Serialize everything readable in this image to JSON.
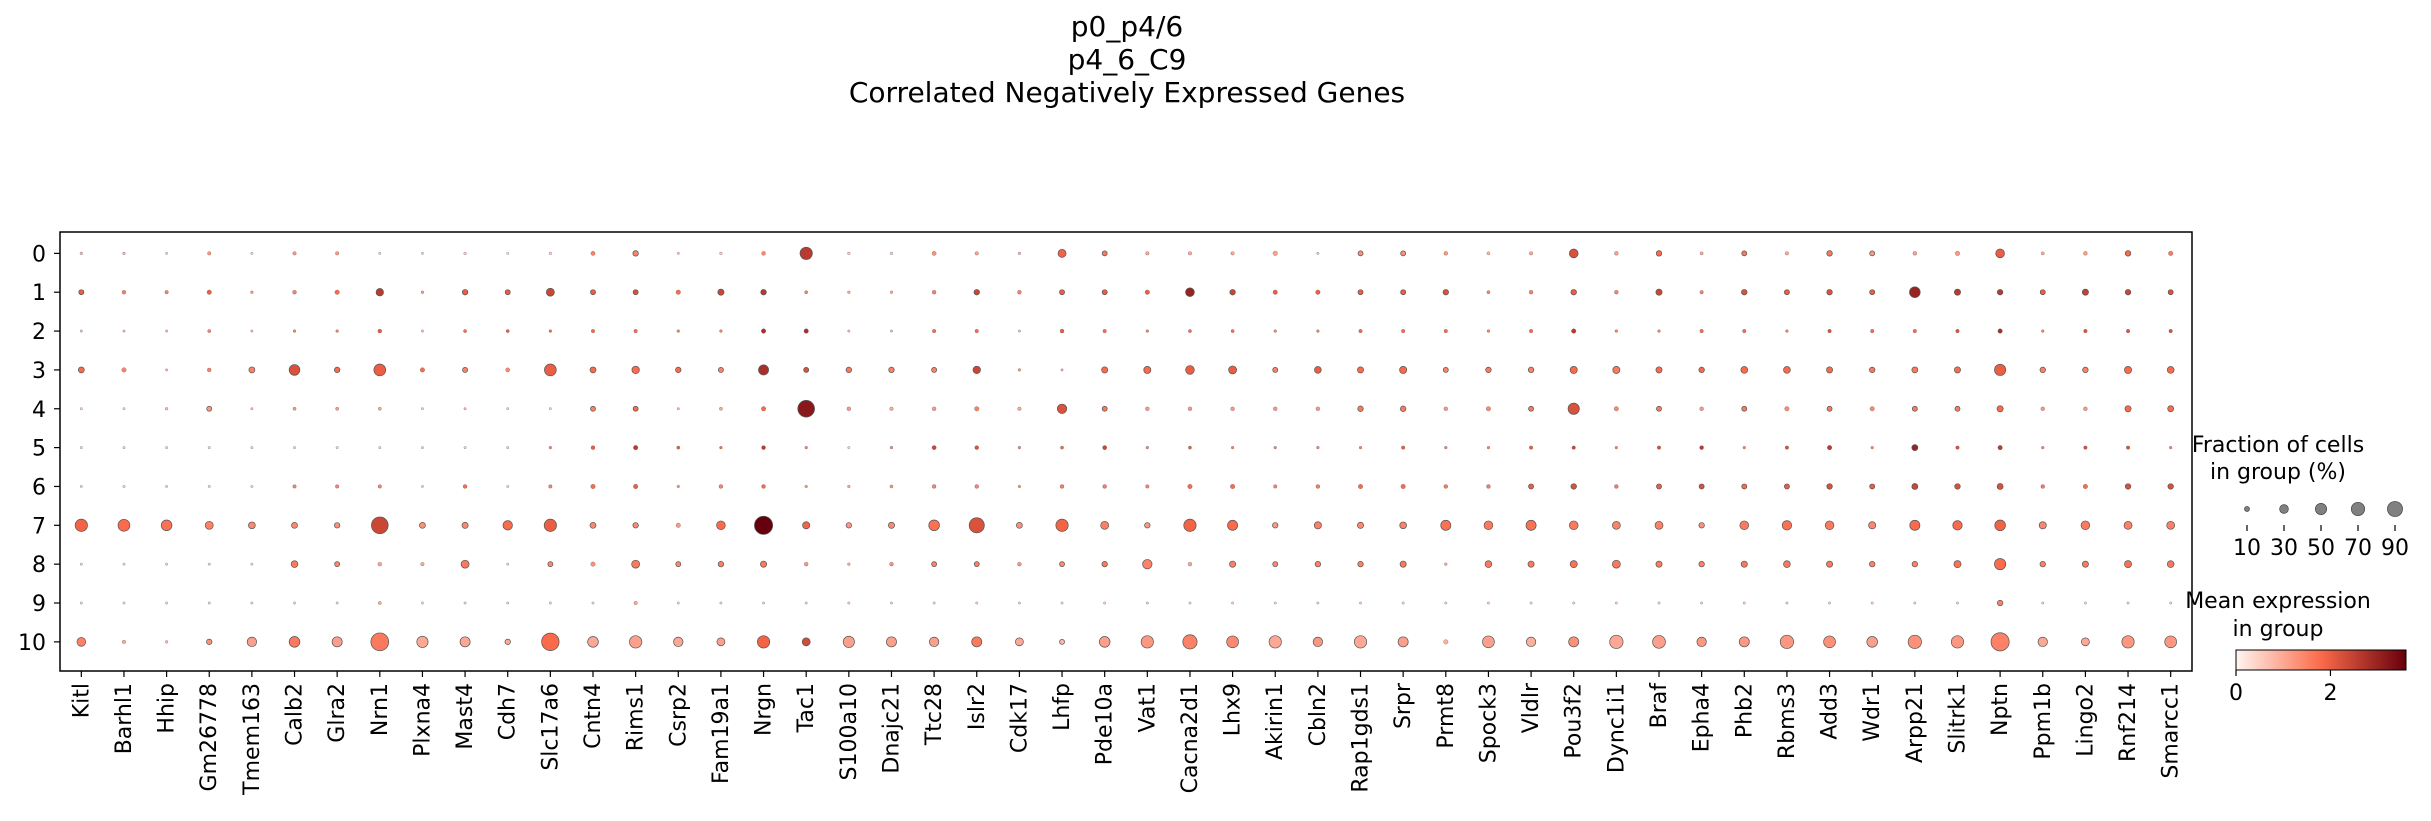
{
  "chart_data": {
    "type": "dotplot",
    "title": [
      "p0_p4/6",
      "p4_6_C9",
      "Correlated Negatively Expressed Genes"
    ],
    "groups": [
      "0",
      "1",
      "2",
      "3",
      "4",
      "5",
      "6",
      "7",
      "8",
      "9",
      "10"
    ],
    "genes": [
      "Kitl",
      "Barhl1",
      "Hhip",
      "Gm26778",
      "Tmem163",
      "Calb2",
      "Glra2",
      "Nrn1",
      "Plxna4",
      "Mast4",
      "Cdh7",
      "Slc17a6",
      "Cntn4",
      "Rims1",
      "Csrp2",
      "Fam19a1",
      "Nrgn",
      "Tac1",
      "S100a10",
      "Dnajc21",
      "Ttc28",
      "Islr2",
      "Cdk17",
      "Lhfp",
      "Pde10a",
      "Vat1",
      "Cacna2d1",
      "Lhx9",
      "Akirin1",
      "Cbln2",
      "Rap1gds1",
      "Srpr",
      "Prmt8",
      "Spock3",
      "Vldlr",
      "Pou3f2",
      "Dync1i1",
      "Braf",
      "Epha4",
      "Phb2",
      "Rbms3",
      "Add3",
      "Wdr1",
      "Arpp21",
      "Slitrk1",
      "Nptn",
      "Ppm1b",
      "Lingo2",
      "Rnf214",
      "Smarcc1"
    ],
    "fraction_pct": [
      [
        3,
        3,
        1,
        5,
        1,
        5,
        5,
        2,
        1,
        3,
        1,
        3,
        7,
        12,
        2,
        3,
        6,
        60,
        3,
        3,
        7,
        5,
        3,
        25,
        10,
        5,
        5,
        5,
        8,
        2,
        10,
        10,
        6,
        4,
        5,
        30,
        6,
        12,
        4,
        10,
        5,
        12,
        10,
        6,
        8,
        30,
        4,
        6,
        12,
        8
      ],
      [
        10,
        6,
        5,
        8,
        3,
        6,
        8,
        22,
        3,
        12,
        10,
        25,
        10,
        10,
        8,
        15,
        12,
        4,
        3,
        3,
        6,
        12,
        6,
        10,
        10,
        8,
        30,
        12,
        8,
        8,
        10,
        10,
        12,
        4,
        6,
        12,
        6,
        15,
        5,
        12,
        10,
        12,
        10,
        45,
        15,
        12,
        10,
        15,
        12,
        10
      ],
      [
        1,
        1,
        1,
        4,
        1,
        3,
        3,
        6,
        1,
        4,
        4,
        3,
        5,
        5,
        3,
        3,
        8,
        8,
        1,
        1,
        5,
        5,
        1,
        6,
        5,
        3,
        4,
        4,
        3,
        3,
        5,
        5,
        5,
        3,
        5,
        8,
        3,
        3,
        5,
        5,
        3,
        5,
        5,
        5,
        5,
        8,
        3,
        5,
        5,
        5
      ],
      [
        14,
        8,
        2,
        6,
        14,
        45,
        12,
        55,
        8,
        10,
        7,
        55,
        14,
        22,
        12,
        10,
        40,
        10,
        12,
        12,
        10,
        22,
        3,
        1,
        15,
        20,
        30,
        25,
        10,
        18,
        15,
        20,
        10,
        12,
        12,
        20,
        20,
        15,
        12,
        18,
        18,
        15,
        12,
        14,
        15,
        50,
        12,
        12,
        20,
        18
      ],
      [
        1,
        1,
        3,
        10,
        2,
        4,
        4,
        4,
        1,
        2,
        1,
        1,
        10,
        10,
        2,
        4,
        8,
        110,
        6,
        5,
        6,
        8,
        5,
        35,
        10,
        6,
        6,
        6,
        6,
        6,
        12,
        12,
        6,
        8,
        10,
        50,
        8,
        10,
        6,
        10,
        8,
        10,
        8,
        10,
        10,
        15,
        6,
        6,
        15,
        14
      ],
      [
        1,
        1,
        1,
        1,
        1,
        1,
        1,
        1,
        1,
        1,
        1,
        3,
        6,
        8,
        4,
        3,
        6,
        3,
        1,
        3,
        7,
        6,
        3,
        4,
        7,
        3,
        4,
        3,
        3,
        3,
        3,
        5,
        3,
        3,
        5,
        5,
        3,
        5,
        6,
        3,
        5,
        8,
        3,
        14,
        5,
        8,
        3,
        5,
        5,
        3
      ],
      [
        1,
        1,
        1,
        1,
        1,
        5,
        5,
        5,
        1,
        6,
        1,
        5,
        8,
        8,
        3,
        6,
        6,
        3,
        3,
        4,
        6,
        6,
        3,
        6,
        6,
        5,
        8,
        8,
        5,
        6,
        8,
        8,
        6,
        6,
        10,
        12,
        6,
        10,
        10,
        10,
        10,
        12,
        10,
        14,
        12,
        14,
        6,
        8,
        12,
        12
      ],
      [
        60,
        55,
        45,
        25,
        18,
        14,
        12,
        110,
        14,
        15,
        35,
        60,
        14,
        12,
        8,
        30,
        130,
        20,
        12,
        15,
        45,
        90,
        14,
        60,
        25,
        12,
        60,
        40,
        12,
        20,
        15,
        18,
        40,
        30,
        40,
        30,
        25,
        25,
        12,
        30,
        35,
        30,
        20,
        40,
        35,
        45,
        20,
        30,
        25,
        25
      ],
      [
        1,
        1,
        1,
        1,
        1,
        18,
        10,
        6,
        5,
        25,
        1,
        10,
        8,
        25,
        10,
        12,
        15,
        6,
        3,
        6,
        10,
        10,
        6,
        10,
        12,
        35,
        6,
        15,
        10,
        12,
        12,
        15,
        3,
        18,
        15,
        20,
        25,
        15,
        12,
        15,
        18,
        15,
        12,
        12,
        20,
        50,
        12,
        15,
        20,
        18
      ],
      [
        1,
        1,
        1,
        1,
        1,
        1,
        1,
        4,
        1,
        1,
        1,
        1,
        1,
        5,
        1,
        1,
        1,
        1,
        1,
        1,
        1,
        1,
        1,
        1,
        1,
        1,
        1,
        1,
        1,
        1,
        1,
        1,
        1,
        1,
        1,
        1,
        1,
        1,
        1,
        1,
        1,
        1,
        1,
        1,
        1,
        12,
        1,
        1,
        1,
        1
      ],
      [
        30,
        5,
        3,
        12,
        35,
        45,
        40,
        125,
        50,
        40,
        12,
        120,
        45,
        60,
        35,
        25,
        60,
        25,
        50,
        40,
        35,
        40,
        25,
        10,
        45,
        60,
        80,
        55,
        60,
        35,
        60,
        40,
        8,
        55,
        35,
        40,
        70,
        65,
        35,
        40,
        70,
        55,
        45,
        70,
        60,
        130,
        35,
        25,
        60,
        55
      ]
    ],
    "mean_expr": [
      [
        0.8,
        0.8,
        0.5,
        1.2,
        0.5,
        1.2,
        1.2,
        0.5,
        0.5,
        0.6,
        0.3,
        0.5,
        1.5,
        1.5,
        0.6,
        0.6,
        1.4,
        2.6,
        0.6,
        0.5,
        1.3,
        1.1,
        0.8,
        1.9,
        1.6,
        1.0,
        1.0,
        1.0,
        1.1,
        0.6,
        1.3,
        1.3,
        1.2,
        0.8,
        1.0,
        2.2,
        1.1,
        1.8,
        1.0,
        1.6,
        1.0,
        1.6,
        1.2,
        1.1,
        1.2,
        2.0,
        1.0,
        1.1,
        1.8,
        1.6
      ],
      [
        2.0,
        1.5,
        1.5,
        2.0,
        1.2,
        1.5,
        1.8,
        2.6,
        1.2,
        2.0,
        2.0,
        2.4,
        2.0,
        2.2,
        1.8,
        2.4,
        2.6,
        1.5,
        1.0,
        1.0,
        1.5,
        2.4,
        1.5,
        2.0,
        2.0,
        2.0,
        3.0,
        2.4,
        2.0,
        2.0,
        2.0,
        2.0,
        2.2,
        1.5,
        1.5,
        2.0,
        1.5,
        2.4,
        1.5,
        2.2,
        2.0,
        2.2,
        2.0,
        3.0,
        2.6,
        2.6,
        2.0,
        2.5,
        2.4,
        2.2
      ],
      [
        0.8,
        0.8,
        0.8,
        1.5,
        0.8,
        1.5,
        1.5,
        2.0,
        0.8,
        1.8,
        2.0,
        1.8,
        1.8,
        1.8,
        1.5,
        1.5,
        2.8,
        2.8,
        0.8,
        0.8,
        1.8,
        1.8,
        0.8,
        2.0,
        1.8,
        1.5,
        1.8,
        1.8,
        1.5,
        1.5,
        1.8,
        1.8,
        1.8,
        1.5,
        1.8,
        2.6,
        1.5,
        1.5,
        1.8,
        1.8,
        1.5,
        2.2,
        1.8,
        1.8,
        2.2,
        2.8,
        1.5,
        2.2,
        2.2,
        2.2
      ],
      [
        1.8,
        1.5,
        0.8,
        1.5,
        1.5,
        2.2,
        1.8,
        2.0,
        1.8,
        1.5,
        1.4,
        2.0,
        1.8,
        1.8,
        1.8,
        1.5,
        2.8,
        2.2,
        1.6,
        1.5,
        1.5,
        2.4,
        1.2,
        1.0,
        1.8,
        1.8,
        2.0,
        2.0,
        1.5,
        2.0,
        1.8,
        1.8,
        1.5,
        1.6,
        1.5,
        1.8,
        1.6,
        1.8,
        1.8,
        1.8,
        1.8,
        1.8,
        1.6,
        1.6,
        1.8,
        2.0,
        1.5,
        1.5,
        1.8,
        1.8
      ],
      [
        0.5,
        0.5,
        0.8,
        1.2,
        0.8,
        1.2,
        1.2,
        1.0,
        0.5,
        0.8,
        0.5,
        0.5,
        1.5,
        1.8,
        0.8,
        1.0,
        1.8,
        3.2,
        1.2,
        1.0,
        1.2,
        1.5,
        1.0,
        2.2,
        1.6,
        1.2,
        1.2,
        1.2,
        1.2,
        1.2,
        1.6,
        1.6,
        1.2,
        1.4,
        1.6,
        2.2,
        1.4,
        1.6,
        1.2,
        1.6,
        1.4,
        1.6,
        1.4,
        1.6,
        1.6,
        1.8,
        1.2,
        1.2,
        1.8,
        1.8
      ],
      [
        0.5,
        0.5,
        0.5,
        0.5,
        0.5,
        0.5,
        0.5,
        0.5,
        0.5,
        0.5,
        0.5,
        1.5,
        2.0,
        2.6,
        2.0,
        1.8,
        2.6,
        1.5,
        0.5,
        1.5,
        2.4,
        2.2,
        1.5,
        1.8,
        2.4,
        1.5,
        2.0,
        1.5,
        1.5,
        1.5,
        1.5,
        2.0,
        1.5,
        1.5,
        2.0,
        2.4,
        1.5,
        2.2,
        2.6,
        1.5,
        2.2,
        2.6,
        1.5,
        3.0,
        2.2,
        2.6,
        1.5,
        2.2,
        2.2,
        1.5
      ],
      [
        0.5,
        0.5,
        0.5,
        0.5,
        0.5,
        1.5,
        1.5,
        1.5,
        0.5,
        1.8,
        0.5,
        1.5,
        1.8,
        2.0,
        1.2,
        1.5,
        1.8,
        1.2,
        1.0,
        1.2,
        1.5,
        1.5,
        1.2,
        1.6,
        1.6,
        1.5,
        1.8,
        1.8,
        1.5,
        1.6,
        1.8,
        1.8,
        1.6,
        1.6,
        2.0,
        2.2,
        1.6,
        2.0,
        2.2,
        1.8,
        2.0,
        2.2,
        2.0,
        2.4,
        2.2,
        2.2,
        1.6,
        1.8,
        2.2,
        2.2
      ],
      [
        1.9,
        1.8,
        1.7,
        1.5,
        1.4,
        1.4,
        1.3,
        2.4,
        1.3,
        1.4,
        1.8,
        2.0,
        1.4,
        1.4,
        1.2,
        1.8,
        3.6,
        1.9,
        1.2,
        1.4,
        1.7,
        2.2,
        1.3,
        1.9,
        1.5,
        1.2,
        1.9,
        1.8,
        1.2,
        1.5,
        1.4,
        1.5,
        1.7,
        1.6,
        1.7,
        1.6,
        1.5,
        1.5,
        1.3,
        1.6,
        1.7,
        1.6,
        1.4,
        1.8,
        1.8,
        1.9,
        1.4,
        1.6,
        1.5,
        1.5
      ],
      [
        0.5,
        0.5,
        0.5,
        0.5,
        0.5,
        1.6,
        1.4,
        1.0,
        1.0,
        1.6,
        0.5,
        1.4,
        1.3,
        1.6,
        1.4,
        1.5,
        1.6,
        1.2,
        1.0,
        1.3,
        1.5,
        1.5,
        1.2,
        1.4,
        1.6,
        1.5,
        1.0,
        1.5,
        1.4,
        1.5,
        1.5,
        1.6,
        1.0,
        1.6,
        1.6,
        1.7,
        1.6,
        1.6,
        1.5,
        1.6,
        1.6,
        1.6,
        1.5,
        1.5,
        1.7,
        1.8,
        1.5,
        1.6,
        1.7,
        1.6
      ],
      [
        0.5,
        0.5,
        0.5,
        0.5,
        0.5,
        0.5,
        0.5,
        1.0,
        0.5,
        0.5,
        0.5,
        0.5,
        0.5,
        1.0,
        0.5,
        0.5,
        0.5,
        0.5,
        0.5,
        0.5,
        0.5,
        0.5,
        0.5,
        0.5,
        0.5,
        0.5,
        0.5,
        0.5,
        0.5,
        0.5,
        0.5,
        0.5,
        0.5,
        0.5,
        0.5,
        0.5,
        0.5,
        0.5,
        0.5,
        0.5,
        0.5,
        0.5,
        0.5,
        0.5,
        0.5,
        1.5,
        0.5,
        0.5,
        0.5,
        0.5
      ],
      [
        1.5,
        1.0,
        0.8,
        1.3,
        1.1,
        1.6,
        1.1,
        1.6,
        1.0,
        1.0,
        1.0,
        1.8,
        1.0,
        1.1,
        1.0,
        1.1,
        1.9,
        2.3,
        1.1,
        1.1,
        1.1,
        1.6,
        1.0,
        0.8,
        1.1,
        1.2,
        1.5,
        1.4,
        1.0,
        1.2,
        1.0,
        1.1,
        0.9,
        1.1,
        0.9,
        1.3,
        1.0,
        1.1,
        1.2,
        1.2,
        1.2,
        1.3,
        1.1,
        1.3,
        1.2,
        1.5,
        1.0,
        1.0,
        1.2,
        1.2
      ]
    ],
    "ylim_note": "groups listed top to bottom",
    "legend": {
      "size_title_1": "Fraction of cells",
      "size_title_2": "in group (%)",
      "size_values": [
        10,
        30,
        50,
        70,
        90
      ],
      "color_title_1": "Mean expression",
      "color_title_2": "in group",
      "color_ticks": [
        0,
        2
      ],
      "color_range": [
        0,
        3.6
      ]
    },
    "colors": {
      "low": "#fff5f0",
      "mid": "#fb6a4a",
      "high": "#67000d",
      "legend_dot": "#808080",
      "edge": "#555555"
    }
  }
}
